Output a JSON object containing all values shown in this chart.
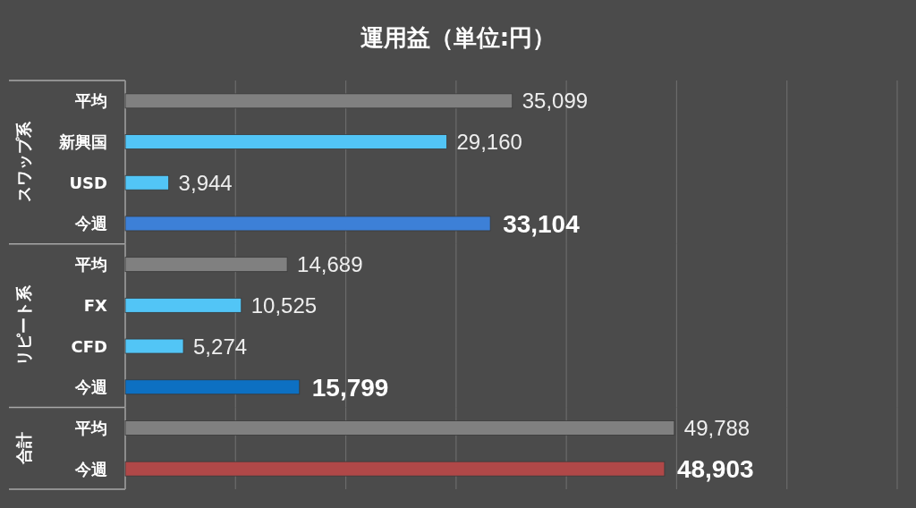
{
  "chart_data": [
    {
      "type": "bar",
      "orientation": "horizontal",
      "title": "運用益（単位:円）",
      "ylabel": "スワップ系",
      "categories": [
        "平均",
        "新興国",
        "USD",
        "今週"
      ],
      "values": [
        35099,
        29160,
        3944,
        33104
      ],
      "colors": [
        "#808080",
        "#52c5f6",
        "#52c5f6",
        "#3d80d7"
      ],
      "value_labels": [
        "35,099",
        "29,160",
        "3,944",
        "**33,104**"
      ],
      "xlim": [
        0,
        70000
      ],
      "xticks": [
        {
          "value": 0,
          "label": null
        },
        {
          "value": 10000,
          "label": null
        },
        {
          "value": 20000,
          "label": null
        },
        {
          "value": 30000,
          "label": null
        },
        {
          "value": 40000,
          "label": null
        },
        {
          "value": 50000,
          "label": null
        },
        {
          "value": 60000,
          "label": null
        },
        {
          "value": 70000,
          "label": null
        }
      ],
      "grid": "x",
      "tick_labels": "y"
    },
    {
      "type": "bar",
      "orientation": "horizontal",
      "ylabel": "リピート系",
      "categories": [
        "平均",
        "FX",
        "CFD",
        "今週"
      ],
      "values": [
        14689,
        10525,
        5274,
        15799
      ],
      "colors": [
        "#808080",
        "#52c5f6",
        "#52c5f6",
        "#0d70c2"
      ],
      "value_labels": [
        "14,689",
        "10,525",
        "5,274",
        "**15,799**"
      ],
      "xlim": [
        0,
        70000
      ],
      "xticks": [
        {
          "value": 0,
          "label": null
        },
        {
          "value": 10000,
          "label": null
        },
        {
          "value": 20000,
          "label": null
        },
        {
          "value": 30000,
          "label": null
        },
        {
          "value": 40000,
          "label": null
        },
        {
          "value": 50000,
          "label": null
        },
        {
          "value": 60000,
          "label": null
        },
        {
          "value": 70000,
          "label": null
        }
      ],
      "grid": "x",
      "tick_labels": "y"
    },
    {
      "type": "bar",
      "orientation": "horizontal",
      "ylabel": "合計",
      "categories": [
        "平均",
        "今週"
      ],
      "values": [
        49788,
        48903
      ],
      "colors": [
        "#808080",
        "#b04848"
      ],
      "value_labels": [
        "49,788",
        "**48,903**"
      ],
      "xlim": [
        0,
        70000
      ],
      "xticks": [
        {
          "value": 0,
          "label": null
        },
        {
          "value": 10000,
          "label": null
        },
        {
          "value": 20000,
          "label": null
        },
        {
          "value": 30000,
          "label": null
        },
        {
          "value": 40000,
          "label": null
        },
        {
          "value": 50000,
          "label": null
        },
        {
          "value": 60000,
          "label": null
        },
        {
          "value": 70000,
          "label": null
        }
      ],
      "grid": "x",
      "tick_labels": "y"
    }
  ]
}
